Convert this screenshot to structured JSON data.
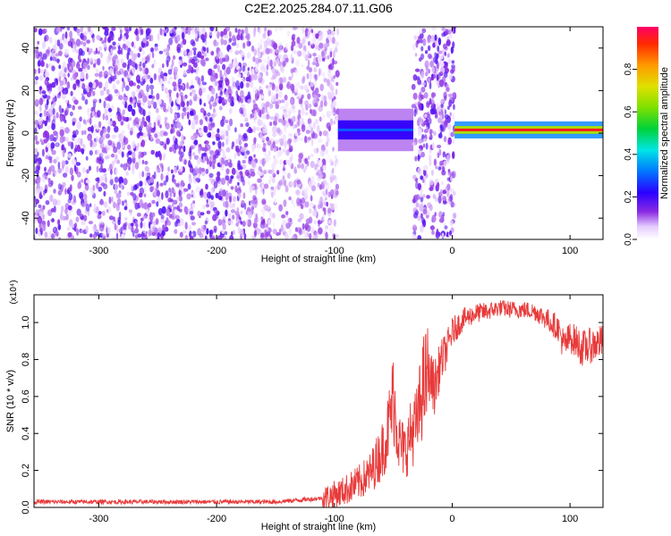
{
  "title": "C2E2.2025.284.07.11.G06",
  "chart_data": [
    {
      "type": "heatmap",
      "xlabel": "Height of straight line (km)",
      "ylabel": "Frequency (Hz)",
      "xlim": [
        -355,
        128
      ],
      "ylim": [
        -50,
        50
      ],
      "xticks": [
        -300,
        -200,
        -100,
        0,
        100
      ],
      "yticks": [
        -40,
        -20,
        0,
        20,
        40
      ],
      "colorbar": {
        "label": "Normalized spectral amplitude",
        "range": [
          0,
          1
        ],
        "ticks": [
          0.0,
          0.2,
          0.4,
          0.6,
          0.8
        ],
        "tick_labels": [
          "0.0",
          "0.2",
          "0.4",
          "0.6",
          "0.8"
        ]
      },
      "regions": [
        {
          "x": [
            -355,
            -170
          ],
          "y": [
            -50,
            50
          ],
          "amplitude": 0.1,
          "pattern": "noise"
        },
        {
          "x": [
            -170,
            -97
          ],
          "y": [
            -50,
            50
          ],
          "amplitude": 0.07,
          "pattern": "noise"
        },
        {
          "x": [
            -97,
            -33
          ],
          "y": [
            -12,
            8
          ],
          "amplitude": 0.3,
          "pattern": "tone"
        },
        {
          "x": [
            -33,
            2
          ],
          "y": [
            -50,
            50
          ],
          "amplitude": 0.1,
          "pattern": "noise"
        },
        {
          "x": [
            2,
            128
          ],
          "y": [
            -2,
            6
          ],
          "amplitude": 0.95,
          "pattern": "tone"
        }
      ],
      "tone_center_hz": 1.5
    },
    {
      "type": "line",
      "xlabel": "Height of straight line (km)",
      "ylabel": "SNR (10 * v/v)",
      "y_multiplier": "(x10⁴)",
      "xlim": [
        -355,
        128
      ],
      "ylim": [
        0,
        1.15
      ],
      "xticks": [
        -300,
        -200,
        -100,
        0,
        100
      ],
      "yticks": [
        0.0,
        0.2,
        0.4,
        0.6,
        0.8,
        1.0
      ],
      "ytick_labels": [
        "0.0",
        "0.2",
        "0.4",
        "0.6",
        "0.8",
        "1.0"
      ],
      "color": "#e83a3a",
      "series": [
        {
          "x": [
            -355,
            -300,
            -200,
            -150,
            -110,
            -95,
            -80,
            -70,
            -60,
            -55,
            -50,
            -45,
            -40,
            -35,
            -30,
            -25,
            -20,
            -15,
            -10,
            -5,
            0,
            10,
            20,
            30,
            40,
            50,
            60,
            70,
            80,
            90,
            95,
            100,
            105,
            110,
            120,
            128
          ],
          "values": [
            0.03,
            0.03,
            0.03,
            0.03,
            0.05,
            0.08,
            0.13,
            0.18,
            0.3,
            0.4,
            0.6,
            0.35,
            0.3,
            0.4,
            0.45,
            0.65,
            0.72,
            0.65,
            0.78,
            0.85,
            0.95,
            1.02,
            1.05,
            1.06,
            1.08,
            1.07,
            1.07,
            1.06,
            1.02,
            0.97,
            0.87,
            0.92,
            0.9,
            0.86,
            0.88,
            0.9
          ]
        }
      ]
    }
  ]
}
